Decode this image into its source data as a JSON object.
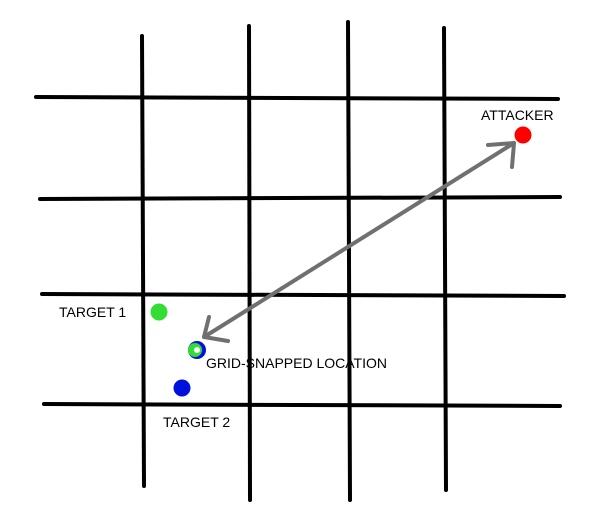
{
  "labels": {
    "attacker": "ATTACKER",
    "target1": "TARGET 1",
    "target2": "TARGET 2",
    "grid_snapped": "GRID-SNAPPED LOCATION"
  },
  "colors": {
    "grid": "#000000",
    "attacker": "#ff0000",
    "target1": "#33dd33",
    "target2": "#0011dd",
    "snapped_outer": "#0011dd",
    "snapped_inner": "#33dd33",
    "arrow": "#707070"
  }
}
